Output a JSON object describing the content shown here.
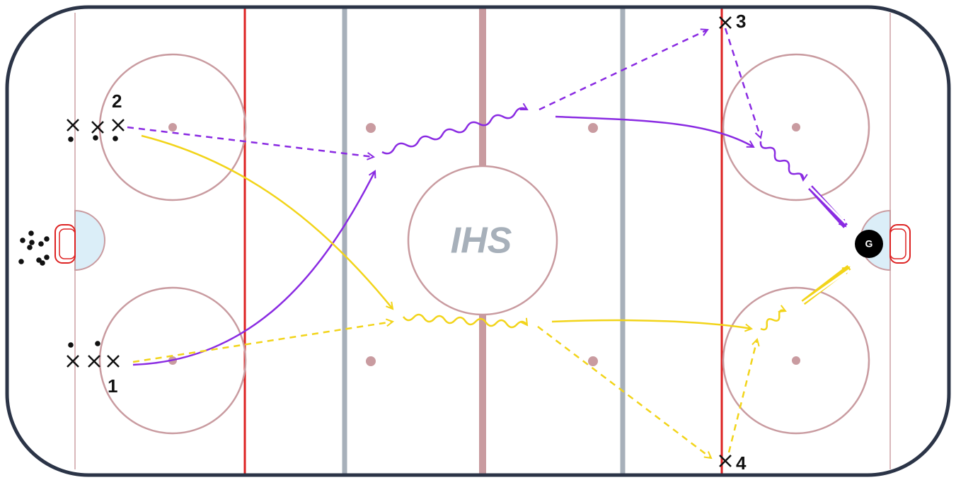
{
  "players": {
    "labels": [
      "1",
      "2",
      "3",
      "4"
    ]
  },
  "goalie": "G",
  "logo": "IHS"
}
